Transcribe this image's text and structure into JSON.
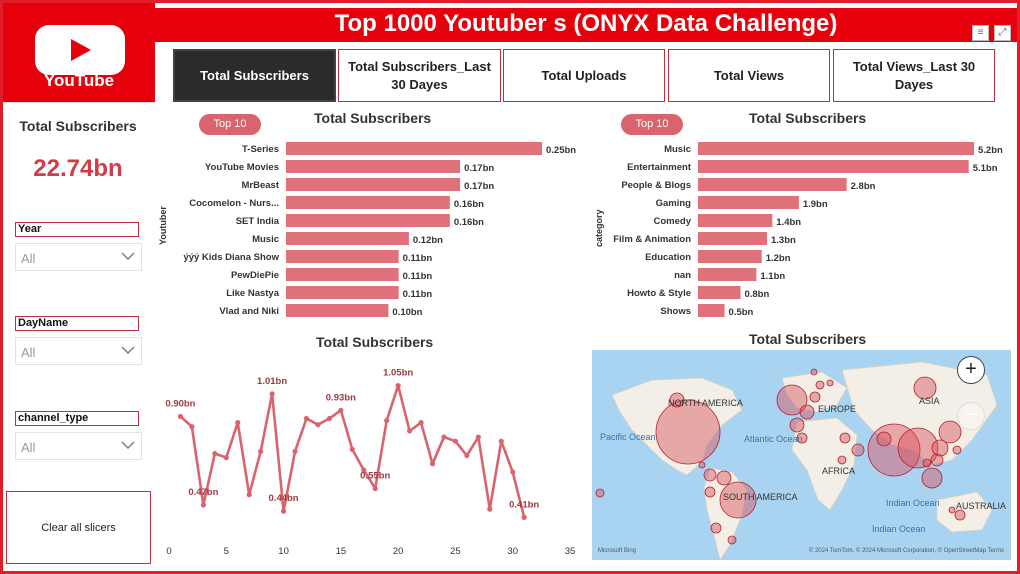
{
  "header": {
    "title": "Top 1000 Youtuber s (ONYX Data Challenge)",
    "logo_text": "YouTube"
  },
  "icons": {
    "filter": "filter-icon",
    "focus": "focus-mode-icon",
    "zoom_in": "plus-icon",
    "zoom_out": "minus-icon",
    "chevron": "chevron-down-icon"
  },
  "tabs": [
    {
      "label": "Total Subscribers",
      "active": true
    },
    {
      "label": "Total Subscribers_Last 30 Dayes",
      "active": false
    },
    {
      "label": "Total Uploads",
      "active": false
    },
    {
      "label": "Total Views",
      "active": false
    },
    {
      "label": "Total Views_Last 30 Dayes",
      "active": false
    }
  ],
  "sidebar": {
    "kpi_label": "Total Subscribers",
    "kpi_value": "22.74bn",
    "slicers": [
      {
        "title": "Year",
        "value": "All"
      },
      {
        "title": "DayName",
        "value": "All"
      },
      {
        "title": "channel_type",
        "value": "All"
      }
    ],
    "clear_label": "Clear all slicers"
  },
  "colors": {
    "accent": "#e5000c",
    "bar": "#e0707a",
    "line": "#d9646e"
  },
  "chart_data": [
    {
      "type": "bar",
      "orientation": "horizontal",
      "title": "Total Subscribers",
      "filter_badge": "Top 10",
      "ylabel": "Youtuber",
      "categories": [
        "T-Series",
        "YouTube Movies",
        "MrBeast",
        "Cocomelon - Nurs...",
        "SET India",
        "Music",
        "ýýý Kids Diana Show",
        "PewDiePie",
        "Like Nastya",
        "Vlad and Niki"
      ],
      "values": [
        0.25,
        0.17,
        0.17,
        0.16,
        0.16,
        0.12,
        0.11,
        0.11,
        0.11,
        0.1
      ],
      "labels": [
        "0.25bn",
        "0.17bn",
        "0.17bn",
        "0.16bn",
        "0.16bn",
        "0.12bn",
        "0.11bn",
        "0.11bn",
        "0.11bn",
        "0.10bn"
      ],
      "xlim": [
        0,
        0.25
      ]
    },
    {
      "type": "bar",
      "orientation": "horizontal",
      "title": "Total Subscribers",
      "filter_badge": "Top 10",
      "ylabel": "category",
      "categories": [
        "Music",
        "Entertainment",
        "People & Blogs",
        "Gaming",
        "Comedy",
        "Film & Animation",
        "Education",
        "nan",
        "Howto & Style",
        "Shows"
      ],
      "values": [
        5.2,
        5.1,
        2.8,
        1.9,
        1.4,
        1.3,
        1.2,
        1.1,
        0.8,
        0.5
      ],
      "labels": [
        "5.2bn",
        "5.1bn",
        "2.8bn",
        "1.9bn",
        "1.4bn",
        "1.3bn",
        "1.2bn",
        "1.1bn",
        "0.8bn",
        "0.5bn"
      ],
      "xlim": [
        0,
        5.2
      ]
    },
    {
      "type": "line",
      "title": "Total Subscribers",
      "x": [
        1,
        2,
        3,
        4,
        5,
        6,
        7,
        8,
        9,
        10,
        11,
        12,
        13,
        14,
        15,
        16,
        17,
        18,
        19,
        20,
        21,
        22,
        23,
        24,
        25,
        26,
        27,
        28,
        29,
        30,
        31
      ],
      "y": [
        0.9,
        0.85,
        0.47,
        0.72,
        0.7,
        0.87,
        0.52,
        0.73,
        1.01,
        0.44,
        0.73,
        0.89,
        0.86,
        0.89,
        0.93,
        0.74,
        0.64,
        0.55,
        0.88,
        1.05,
        0.83,
        0.87,
        0.67,
        0.8,
        0.78,
        0.71,
        0.8,
        0.45,
        0.78,
        0.63,
        0.41
      ],
      "point_labels": [
        {
          "x": 1,
          "text": "0.90bn"
        },
        {
          "x": 3,
          "text": "0.47bn"
        },
        {
          "x": 9,
          "text": "1.01bn"
        },
        {
          "x": 10,
          "text": "0.44bn"
        },
        {
          "x": 15,
          "text": "0.93bn"
        },
        {
          "x": 18,
          "text": "0.55bn"
        },
        {
          "x": 20,
          "text": "1.05bn"
        },
        {
          "x": 31,
          "text": "0.41bn"
        }
      ],
      "xticks": [
        "0",
        "5",
        "10",
        "15",
        "20",
        "25",
        "30",
        "35"
      ],
      "xlim": [
        0,
        35
      ],
      "ylim": [
        0.3,
        1.15
      ]
    }
  ],
  "map": {
    "title": "Total Subscribers",
    "labels": [
      "NORTH AMERICA",
      "EUROPE",
      "ASIA",
      "AFRICA",
      "SOUTH AMERICA",
      "AUSTRALIA",
      "Pacific Ocean",
      "Atlantic Ocean",
      "Indian Ocean",
      "Indian Ocean"
    ],
    "attribution": "© 2024 TomTom, © 2024 Microsoft Corporation, © OpenStreetMap  Terms",
    "bing": "Microsoft Bing"
  }
}
